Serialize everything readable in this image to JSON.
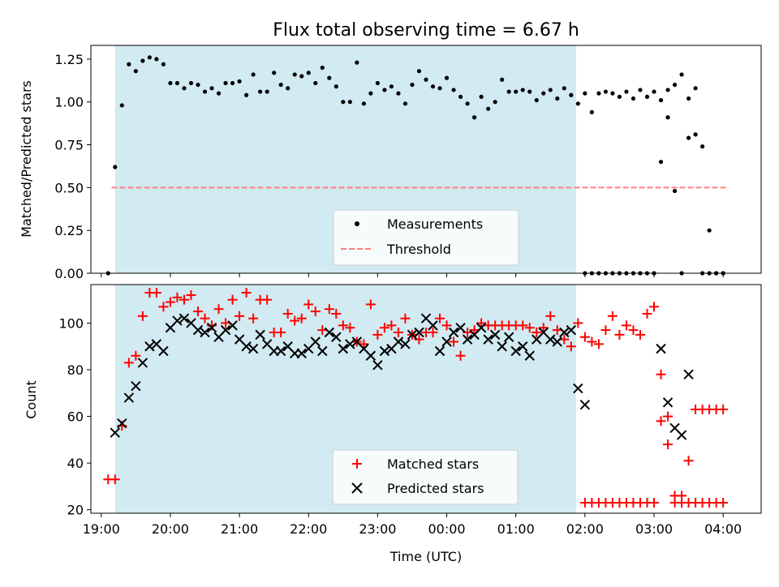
{
  "chart_data": [
    {
      "type": "scatter",
      "title": "Flux total observing time = 6.67 h",
      "ylabel": "Matched/Predicted stars",
      "ylim": [
        0,
        1.33
      ],
      "yticks": [
        "0.00",
        "0.25",
        "0.50",
        "0.75",
        "1.00",
        "1.25"
      ],
      "xlim_hours": [
        18.85,
        28.55
      ],
      "shaded_interval_hours": [
        19.2,
        25.87
      ],
      "shade_color": "#add8e6",
      "threshold": {
        "name": "Threshold",
        "value": 0.5,
        "x_range_hours": [
          19.15,
          28.05
        ],
        "color": "#ff7f7f"
      },
      "series": [
        {
          "name": "Measurements",
          "color": "#000000",
          "x": [
            19.1,
            19.2,
            19.3,
            19.4,
            19.5,
            19.6,
            19.7,
            19.8,
            19.9,
            20.0,
            20.1,
            20.2,
            20.3,
            20.4,
            20.5,
            20.6,
            20.7,
            20.8,
            20.9,
            21.0,
            21.1,
            21.2,
            21.3,
            21.4,
            21.5,
            21.6,
            21.7,
            21.8,
            21.9,
            22.0,
            22.1,
            22.2,
            22.3,
            22.4,
            22.5,
            22.6,
            22.7,
            22.8,
            22.9,
            23.0,
            23.1,
            23.2,
            23.3,
            23.4,
            23.5,
            23.6,
            23.7,
            23.8,
            23.9,
            24.0,
            24.1,
            24.2,
            24.3,
            24.4,
            24.5,
            24.6,
            24.7,
            24.8,
            24.9,
            25.0,
            25.1,
            25.2,
            25.3,
            25.4,
            25.5,
            25.6,
            25.7,
            25.8,
            25.9,
            26.0,
            26.1,
            26.2,
            26.3,
            26.4,
            26.5,
            26.6,
            26.7,
            26.8,
            26.9,
            27.0,
            27.1,
            27.2,
            27.3,
            27.4,
            27.5,
            27.6,
            27.7,
            27.8,
            27.9,
            28.0
          ],
          "y": [
            0.0,
            0.62,
            0.98,
            1.22,
            1.18,
            1.24,
            1.26,
            1.25,
            1.22,
            1.11,
            1.11,
            1.08,
            1.11,
            1.1,
            1.06,
            1.08,
            1.05,
            1.11,
            1.11,
            1.12,
            1.04,
            1.16,
            1.06,
            1.06,
            1.17,
            1.1,
            1.08,
            1.16,
            1.15,
            1.17,
            1.11,
            1.2,
            1.14,
            1.09,
            1.0,
            1.0,
            1.23,
            0.99,
            1.05,
            1.11,
            1.07,
            1.09,
            1.05,
            0.99,
            1.1,
            1.18,
            1.13,
            1.09,
            1.08,
            1.14,
            1.07,
            1.03,
            0.99,
            0.91,
            1.03,
            0.96,
            1.0,
            1.13,
            1.06,
            1.06,
            1.07,
            1.06,
            1.01,
            1.05,
            1.07,
            1.02,
            1.08,
            1.04,
            0.99,
            1.05,
            0.94,
            1.05,
            1.06,
            1.05,
            1.03,
            1.06,
            1.02,
            1.07,
            1.03,
            1.06,
            1.01,
            1.07,
            1.1,
            1.16,
            1.02,
            1.08,
            0.74,
            0.25,
            0.0,
            0.0
          ]
        }
      ],
      "extra_points": {
        "x": [
          26.0,
          26.1,
          26.2,
          26.3,
          26.4,
          26.5,
          26.6,
          26.7,
          26.8,
          26.9,
          27.0,
          27.1,
          27.2,
          27.3,
          27.4,
          27.5,
          27.6,
          27.7,
          27.8,
          27.9,
          28.0
        ],
        "y": [
          0.0,
          0.0,
          0.0,
          0.0,
          0.0,
          0.0,
          0.0,
          0.0,
          0.0,
          0.0,
          0.0,
          0.65,
          0.91,
          0.48,
          0.0,
          0.79,
          0.81,
          0.0,
          0.0,
          0.0,
          0.0
        ]
      },
      "legend": {
        "entries": [
          "Measurements",
          "Threshold"
        ],
        "placement": "lower-center"
      }
    },
    {
      "type": "scatter",
      "xlabel": "Time (UTC)",
      "ylabel": "Count",
      "ylim": [
        18.5,
        116.5
      ],
      "yticks": [
        "20",
        "40",
        "60",
        "80",
        "100"
      ],
      "xticks": [
        "19:00",
        "20:00",
        "21:00",
        "22:00",
        "23:00",
        "00:00",
        "01:00",
        "02:00",
        "03:00",
        "04:00"
      ],
      "xlim_hours": [
        18.85,
        28.55
      ],
      "shaded_interval_hours": [
        19.2,
        25.87
      ],
      "shade_color": "#add8e6",
      "series": [
        {
          "name": "Matched stars",
          "marker": "+",
          "color": "#ff0000",
          "x": [
            19.1,
            19.2,
            19.3,
            19.4,
            19.5,
            19.6,
            19.7,
            19.8,
            19.9,
            20.0,
            20.1,
            20.2,
            20.3,
            20.4,
            20.5,
            20.6,
            20.7,
            20.8,
            20.9,
            21.0,
            21.1,
            21.2,
            21.3,
            21.4,
            21.5,
            21.6,
            21.7,
            21.8,
            21.9,
            22.0,
            22.1,
            22.2,
            22.3,
            22.4,
            22.5,
            22.6,
            22.7,
            22.8,
            22.9,
            23.0,
            23.1,
            23.2,
            23.3,
            23.4,
            23.5,
            23.6,
            23.7,
            23.8,
            23.9,
            24.0,
            24.1,
            24.2,
            24.3,
            24.4,
            24.5,
            24.6,
            24.7,
            24.8,
            24.9,
            25.0,
            25.1,
            25.2,
            25.3,
            25.4,
            25.5,
            25.6,
            25.7,
            25.8,
            25.9,
            26.0,
            26.1,
            26.2,
            26.3,
            26.4,
            26.5,
            26.6,
            26.7,
            26.8,
            26.9,
            27.0,
            27.1,
            27.2,
            27.3,
            27.4,
            27.5,
            27.6,
            27.7,
            27.8,
            27.9,
            28.0
          ],
          "y": [
            33,
            33,
            56,
            83,
            86,
            103,
            113,
            113,
            107,
            109,
            111,
            110,
            112,
            105,
            102,
            99,
            106,
            100,
            110,
            103,
            113,
            102,
            110,
            110,
            96,
            96,
            104,
            101,
            102,
            108,
            105,
            97,
            106,
            104,
            99,
            98,
            92,
            91,
            108,
            95,
            98,
            99,
            96,
            102,
            95,
            93,
            96,
            96,
            102,
            99,
            92,
            86,
            96,
            97,
            100,
            99,
            99,
            99,
            99,
            99,
            99,
            98,
            96,
            98,
            103,
            97,
            93,
            90,
            100,
            94,
            92,
            91,
            97,
            103,
            95,
            99,
            97,
            95,
            104,
            107,
            78,
            48,
            23,
            23,
            23,
            23,
            23,
            23,
            23,
            23
          ],
          "extra": {
            "x": [
              26.0,
              26.1,
              26.2,
              26.3,
              26.4,
              26.5,
              26.6,
              26.7,
              26.8,
              26.9,
              27.0,
              27.1,
              27.2,
              27.3,
              27.4,
              27.5,
              27.6,
              27.7,
              27.8,
              27.9,
              28.0
            ],
            "y": [
              23,
              23,
              23,
              23,
              23,
              23,
              23,
              23,
              23,
              23,
              23,
              58,
              60,
              26,
              26,
              41,
              63,
              63,
              63,
              63,
              63
            ]
          }
        },
        {
          "name": "Predicted stars",
          "marker": "x",
          "color": "#000000",
          "x": [
            19.2,
            19.3,
            19.4,
            19.5,
            19.6,
            19.7,
            19.8,
            19.9,
            20.0,
            20.1,
            20.2,
            20.3,
            20.4,
            20.5,
            20.6,
            20.7,
            20.8,
            20.9,
            21.0,
            21.1,
            21.2,
            21.3,
            21.4,
            21.5,
            21.6,
            21.7,
            21.8,
            21.9,
            22.0,
            22.1,
            22.2,
            22.3,
            22.4,
            22.5,
            22.6,
            22.7,
            22.8,
            22.9,
            23.0,
            23.1,
            23.2,
            23.3,
            23.4,
            23.5,
            23.6,
            23.7,
            23.8,
            23.9,
            24.0,
            24.1,
            24.2,
            24.3,
            24.4,
            24.5,
            24.6,
            24.7,
            24.8,
            24.9,
            25.0,
            25.1,
            25.2,
            25.3,
            25.4,
            25.5,
            25.6,
            25.7,
            25.8,
            25.9,
            26.0,
            27.1,
            27.2,
            27.3,
            27.4,
            27.5
          ],
          "y": [
            53,
            57,
            68,
            73,
            83,
            90,
            91,
            88,
            98,
            101,
            102,
            100,
            97,
            96,
            98,
            94,
            97,
            99,
            93,
            90,
            89,
            95,
            91,
            88,
            88,
            90,
            87,
            87,
            89,
            92,
            88,
            96,
            94,
            89,
            91,
            92,
            89,
            86,
            82,
            88,
            89,
            92,
            91,
            95,
            96,
            102,
            99,
            88,
            92,
            96,
            98,
            93,
            95,
            98,
            93,
            95,
            90,
            94,
            88,
            90,
            86,
            93,
            96,
            93,
            92,
            96,
            97,
            72,
            65,
            89,
            66,
            55,
            52,
            78
          ]
        }
      ],
      "legend": {
        "entries": [
          "Matched stars",
          "Predicted stars"
        ],
        "placement": "lower-center"
      }
    }
  ]
}
